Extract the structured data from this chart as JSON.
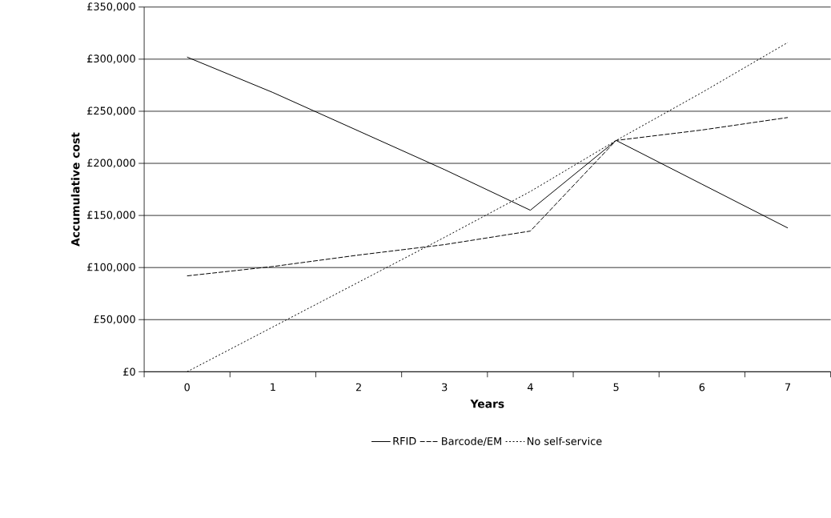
{
  "chart_data": {
    "type": "line",
    "xlabel": "Years",
    "ylabel": "Accumulative cost",
    "categories": [
      "0",
      "1",
      "2",
      "3",
      "4",
      "5",
      "6",
      "7"
    ],
    "series": [
      {
        "name": "RFID",
        "color": "#000000",
        "line_style": "solid",
        "values": [
          302000,
          268000,
          231000,
          194000,
          155000,
          222000,
          180000,
          138000
        ]
      },
      {
        "name": "Barcode/EM",
        "color": "#000000",
        "line_style": "dashed",
        "values": [
          92000,
          101000,
          112000,
          122000,
          135000,
          222000,
          232000,
          244000
        ]
      },
      {
        "name": "No self-service",
        "color": "#000000",
        "line_style": "dotted",
        "values": [
          0,
          43000,
          86000,
          129000,
          173000,
          222000,
          268000,
          316000
        ]
      }
    ],
    "ylim": [
      0,
      350000
    ],
    "yticks": [
      {
        "value": 0,
        "label": "£0"
      },
      {
        "value": 50000,
        "label": "£50,000"
      },
      {
        "value": 100000,
        "label": "£100,000"
      },
      {
        "value": 150000,
        "label": "£150,000"
      },
      {
        "value": 200000,
        "label": "£200,000"
      },
      {
        "value": 250000,
        "label": "£250,000"
      },
      {
        "value": 300000,
        "label": "£300,000"
      },
      {
        "value": 350000,
        "label": "£350,000"
      }
    ],
    "grid": "y",
    "legend": "bottom",
    "marker": "none"
  }
}
